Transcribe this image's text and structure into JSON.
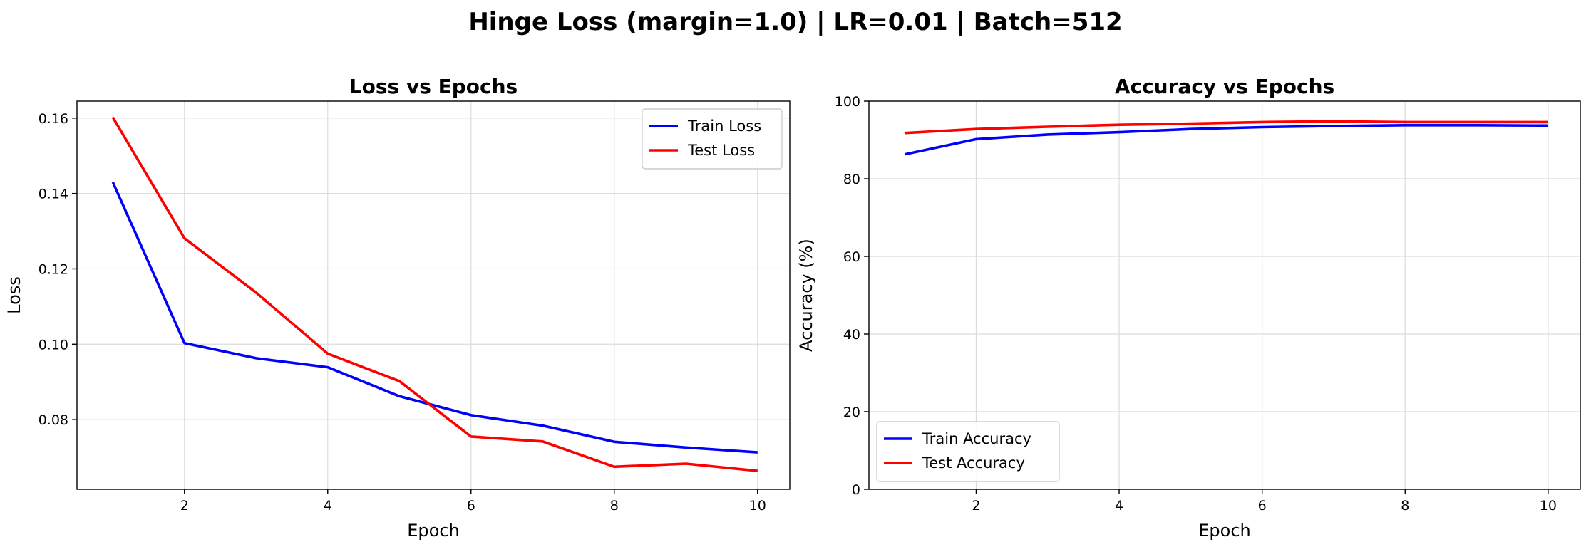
{
  "figure_title": "Hinge Loss (margin=1.0) | LR=0.01 | Batch=512",
  "chart_data": [
    {
      "type": "line",
      "title": "Loss vs Epochs",
      "xlabel": "Epoch",
      "ylabel": "Loss",
      "xlim": [
        0.5,
        10.45
      ],
      "ylim": [
        0.0615,
        0.1645
      ],
      "xticks": [
        2,
        4,
        6,
        8,
        10
      ],
      "yticks": [
        0.08,
        0.1,
        0.12,
        0.14,
        0.16
      ],
      "ytick_decimals": 2,
      "grid": true,
      "legend": "upper-right",
      "x": [
        1,
        2,
        3,
        4,
        5,
        6,
        7,
        8,
        9,
        10
      ],
      "series": [
        {
          "name": "Train Loss",
          "color": "#0000ff",
          "values": [
            0.143,
            0.1003,
            0.0963,
            0.0939,
            0.0862,
            0.0812,
            0.0784,
            0.0741,
            0.0726,
            0.0713
          ]
        },
        {
          "name": "Test Loss",
          "color": "#ff0000",
          "values": [
            0.1602,
            0.1281,
            0.1137,
            0.0975,
            0.0902,
            0.0755,
            0.0742,
            0.0675,
            0.0683,
            0.0664
          ]
        }
      ]
    },
    {
      "type": "line",
      "title": "Accuracy vs Epochs",
      "xlabel": "Epoch",
      "ylabel": "Accuracy (%)",
      "xlim": [
        0.5,
        10.45
      ],
      "ylim": [
        0,
        100
      ],
      "xticks": [
        2,
        4,
        6,
        8,
        10
      ],
      "yticks": [
        0,
        20,
        40,
        60,
        80,
        100
      ],
      "ytick_decimals": 0,
      "grid": true,
      "legend": "lower-left",
      "x": [
        1,
        2,
        3,
        4,
        5,
        6,
        7,
        8,
        9,
        10
      ],
      "series": [
        {
          "name": "Train Accuracy",
          "color": "#0000ff",
          "values": [
            86.3,
            90.2,
            91.4,
            92.0,
            92.8,
            93.3,
            93.6,
            93.8,
            93.8,
            93.7
          ]
        },
        {
          "name": "Test Accuracy",
          "color": "#ff0000",
          "values": [
            91.8,
            92.8,
            93.4,
            93.9,
            94.2,
            94.6,
            94.8,
            94.6,
            94.6,
            94.6
          ]
        }
      ]
    }
  ]
}
